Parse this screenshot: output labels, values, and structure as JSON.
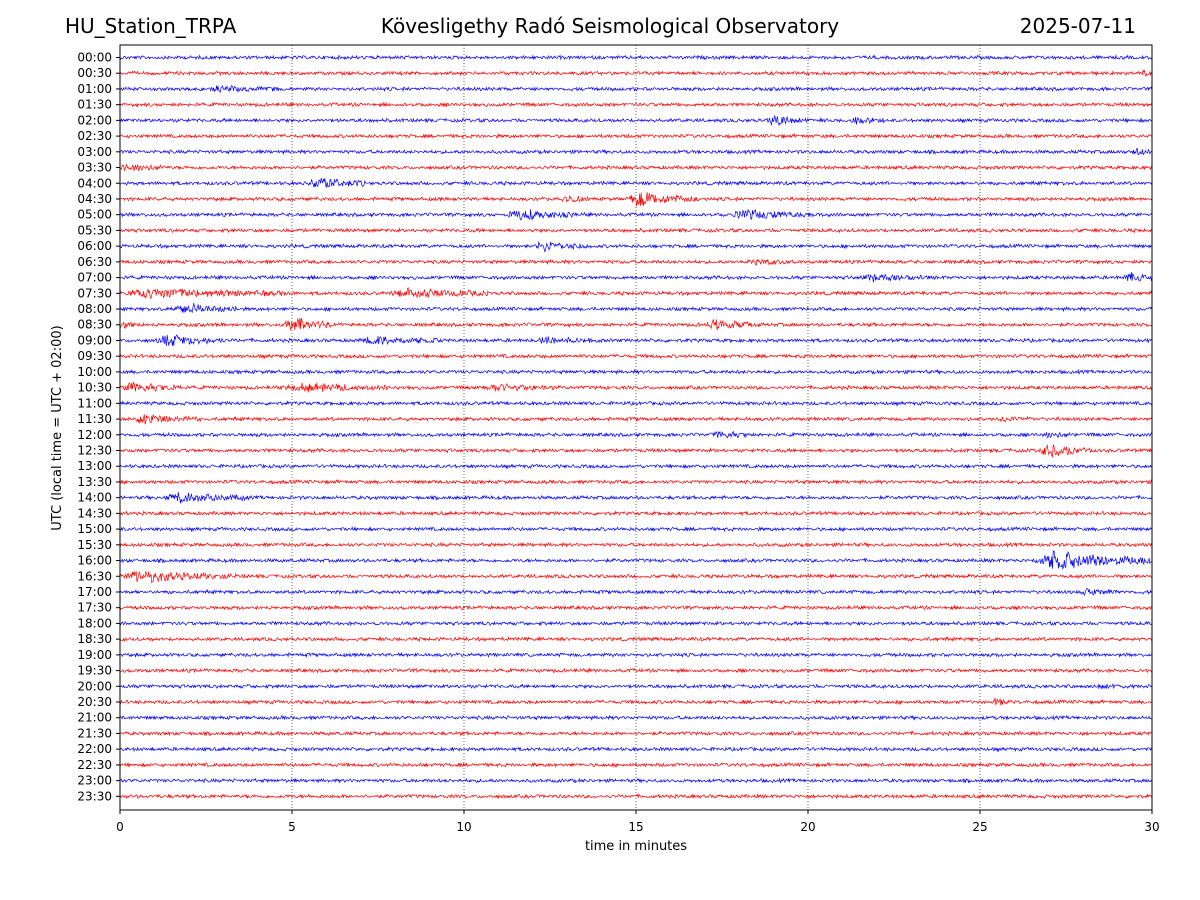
{
  "header": {
    "station": "HU_Station_TRPA",
    "observatory": "Kövesligethy Radó Seismological Observatory",
    "date": "2025-07-11"
  },
  "colors": {
    "trace_on_hour": "#0000ff",
    "trace_half_hour": "#ff0000",
    "axes": "#000000",
    "grid": "#000000"
  },
  "chart_data": {
    "type": "line",
    "subtype": "helicorder",
    "xlabel": "time in minutes",
    "ylabel": "UTC (local time = UTC + 02:00)",
    "xlim": [
      0,
      30
    ],
    "x_ticks": [
      "0",
      "5",
      "10",
      "15",
      "20",
      "25",
      "30"
    ],
    "vertical_grid": "dotted, at each x tick",
    "row_labels": [
      "00:00",
      "00:30",
      "01:00",
      "01:30",
      "02:00",
      "02:30",
      "03:00",
      "03:30",
      "04:00",
      "04:30",
      "05:00",
      "05:30",
      "06:00",
      "06:30",
      "07:00",
      "07:30",
      "08:00",
      "08:30",
      "09:00",
      "09:30",
      "10:00",
      "10:30",
      "11:00",
      "11:30",
      "12:00",
      "12:30",
      "13:00",
      "13:30",
      "14:00",
      "14:30",
      "15:00",
      "15:30",
      "16:00",
      "16:30",
      "17:00",
      "17:30",
      "18:00",
      "18:30",
      "19:00",
      "19:30",
      "20:00",
      "20:30",
      "21:00",
      "21:30",
      "22:00",
      "22:30",
      "23:00",
      "23:30"
    ],
    "series_colors": "alternating blue (hour rows) / red (half-hour rows)",
    "events": [
      {
        "row": "00:30",
        "start_min": 29.7,
        "end_min": 30.0,
        "amp": 0.25
      },
      {
        "row": "01:00",
        "start_min": 2.5,
        "end_min": 4.6,
        "amp": 0.22
      },
      {
        "row": "02:00",
        "start_min": 18.8,
        "end_min": 20.0,
        "amp": 0.45
      },
      {
        "row": "02:00",
        "start_min": 21.2,
        "end_min": 22.2,
        "amp": 0.25
      },
      {
        "row": "03:00",
        "start_min": 29.4,
        "end_min": 30.0,
        "amp": 0.35
      },
      {
        "row": "03:30",
        "start_min": 0.0,
        "end_min": 1.3,
        "amp": 0.4
      },
      {
        "row": "04:00",
        "start_min": 5.4,
        "end_min": 7.2,
        "amp": 0.55
      },
      {
        "row": "04:30",
        "start_min": 12.8,
        "end_min": 13.6,
        "amp": 0.35
      },
      {
        "row": "04:30",
        "start_min": 14.7,
        "end_min": 16.8,
        "amp": 0.7
      },
      {
        "row": "05:00",
        "start_min": 11.2,
        "end_min": 13.2,
        "amp": 0.5
      },
      {
        "row": "05:00",
        "start_min": 17.7,
        "end_min": 20.3,
        "amp": 0.4
      },
      {
        "row": "06:00",
        "start_min": 12.0,
        "end_min": 13.6,
        "amp": 0.5
      },
      {
        "row": "06:30",
        "start_min": 18.2,
        "end_min": 19.6,
        "amp": 0.2
      },
      {
        "row": "07:00",
        "start_min": 21.5,
        "end_min": 23.5,
        "amp": 0.25
      },
      {
        "row": "07:00",
        "start_min": 29.2,
        "end_min": 30.0,
        "amp": 0.4
      },
      {
        "row": "07:30",
        "start_min": 0.0,
        "end_min": 5.0,
        "amp": 0.45
      },
      {
        "row": "07:30",
        "start_min": 7.8,
        "end_min": 10.8,
        "amp": 0.45
      },
      {
        "row": "08:00",
        "start_min": 1.5,
        "end_min": 3.4,
        "amp": 0.45
      },
      {
        "row": "08:30",
        "start_min": 0.0,
        "end_min": 0.6,
        "amp": 0.35
      },
      {
        "row": "08:30",
        "start_min": 4.7,
        "end_min": 6.2,
        "amp": 0.7
      },
      {
        "row": "08:30",
        "start_min": 17.0,
        "end_min": 18.6,
        "amp": 0.45
      },
      {
        "row": "09:00",
        "start_min": 1.0,
        "end_min": 3.0,
        "amp": 0.5
      },
      {
        "row": "09:00",
        "start_min": 7.0,
        "end_min": 9.3,
        "amp": 0.4
      },
      {
        "row": "09:00",
        "start_min": 12.0,
        "end_min": 14.0,
        "amp": 0.25
      },
      {
        "row": "10:30",
        "start_min": 0.0,
        "end_min": 1.8,
        "amp": 0.4
      },
      {
        "row": "10:30",
        "start_min": 4.7,
        "end_min": 8.0,
        "amp": 0.35
      },
      {
        "row": "10:30",
        "start_min": 10.5,
        "end_min": 12.7,
        "amp": 0.3
      },
      {
        "row": "11:30",
        "start_min": 0.3,
        "end_min": 2.4,
        "amp": 0.45
      },
      {
        "row": "11:30",
        "start_min": 25.5,
        "end_min": 26.6,
        "amp": 0.2
      },
      {
        "row": "12:00",
        "start_min": 17.2,
        "end_min": 18.3,
        "amp": 0.3
      },
      {
        "row": "12:00",
        "start_min": 26.8,
        "end_min": 27.7,
        "amp": 0.25
      },
      {
        "row": "12:30",
        "start_min": 26.7,
        "end_min": 28.2,
        "amp": 0.65
      },
      {
        "row": "14:00",
        "start_min": 1.3,
        "end_min": 3.7,
        "amp": 0.5
      },
      {
        "row": "16:00",
        "start_min": 26.5,
        "end_min": 30.0,
        "amp": 0.95
      },
      {
        "row": "16:30",
        "start_min": 0.0,
        "end_min": 3.4,
        "amp": 0.55
      },
      {
        "row": "17:00",
        "start_min": 27.9,
        "end_min": 29.0,
        "amp": 0.25
      },
      {
        "row": "20:00",
        "start_min": 28.3,
        "end_min": 29.3,
        "amp": 0.2
      },
      {
        "row": "20:30",
        "start_min": 25.3,
        "end_min": 25.9,
        "amp": 0.3
      }
    ]
  }
}
